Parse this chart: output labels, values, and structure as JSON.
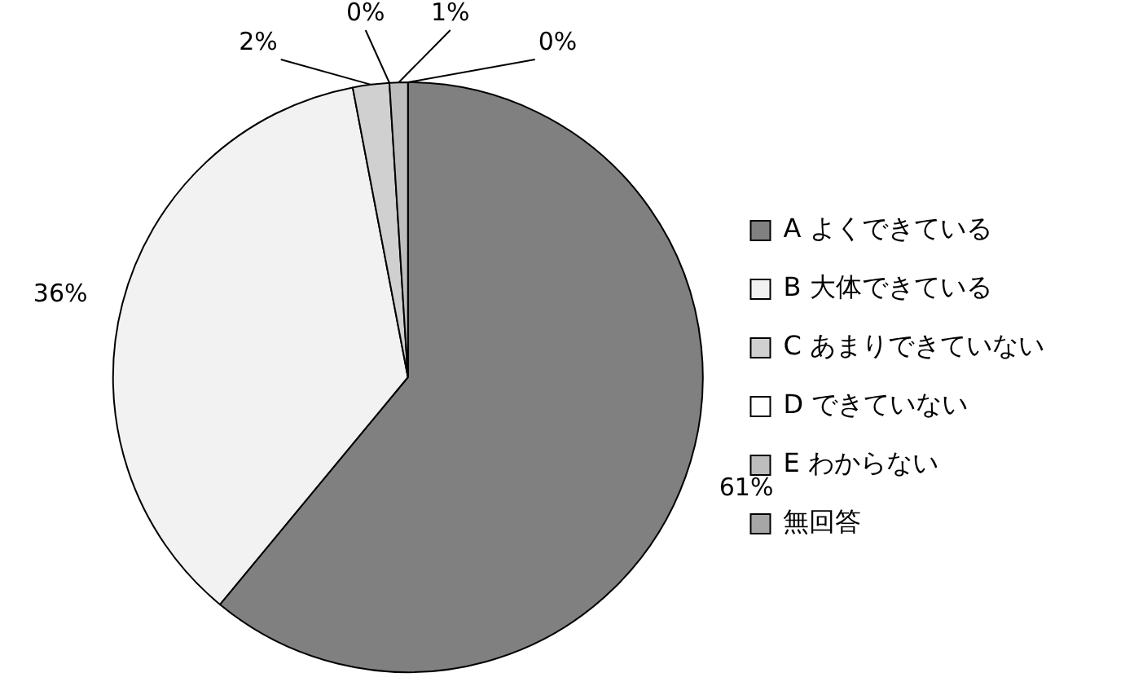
{
  "chart_data": {
    "type": "pie",
    "categories": [
      "A よくできている",
      "B 大体できている",
      "C あまりできていない",
      "D できていない",
      "E わからない",
      "無回答"
    ],
    "values": [
      61,
      36,
      2,
      0,
      1,
      0
    ],
    "value_labels": [
      "61%",
      "36%",
      "2%",
      "0%",
      "1%",
      "0%"
    ],
    "colors": [
      "#808080",
      "#f2f2f2",
      "#d0d0d0",
      "#ffffff",
      "#bdbdbd",
      "#a6a6a6"
    ],
    "legend": "right"
  }
}
